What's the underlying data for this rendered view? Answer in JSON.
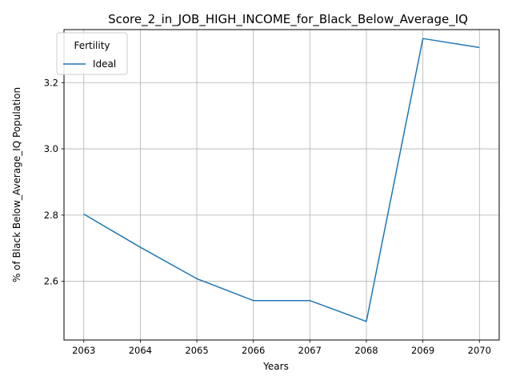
{
  "chart_data": {
    "type": "line",
    "title": "Score_2_in_JOB_HIGH_INCOME_for_Black_Below_Average_IQ",
    "xlabel": "Years",
    "ylabel": "% of Black Below_Average_IQ Population",
    "x": [
      2063,
      2064,
      2065,
      2066,
      2067,
      2068,
      2069,
      2070
    ],
    "x_tick_labels": [
      "2063",
      "2064",
      "2065",
      "2066",
      "2067",
      "2068",
      "2069",
      "2070"
    ],
    "y_ticks": [
      2.6,
      2.8,
      3.0,
      3.2
    ],
    "y_tick_labels": [
      "2.6",
      "2.8",
      "3.0",
      "3.2"
    ],
    "xlim": [
      2062.65,
      2070.35
    ],
    "ylim": [
      2.423,
      3.36
    ],
    "grid": true,
    "legend": {
      "title": "Fertility",
      "position": "upper-left"
    },
    "series": [
      {
        "name": "Ideal",
        "color": "#1f77b4",
        "values": [
          2.803,
          2.703,
          2.608,
          2.542,
          2.542,
          2.479,
          3.333,
          3.306
        ]
      }
    ]
  }
}
